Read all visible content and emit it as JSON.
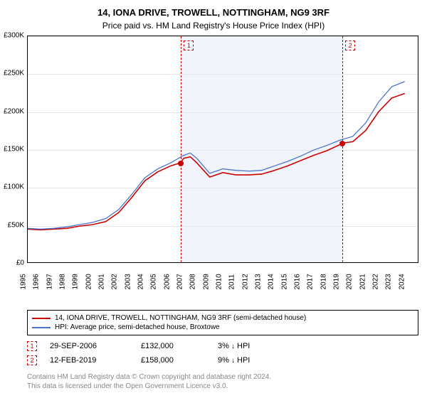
{
  "title": "14, IONA DRIVE, TROWELL, NOTTINGHAM, NG9 3RF",
  "subtitle": "Price paid vs. HM Land Registry's House Price Index (HPI)",
  "chart": {
    "type": "line",
    "ylim": [
      0,
      300000
    ],
    "ytick_step": 50000,
    "yticklabels": [
      "£0",
      "£50K",
      "£100K",
      "£150K",
      "£200K",
      "£250K",
      "£300K"
    ],
    "x_start": 1995,
    "x_end": 2025,
    "xticklabels": [
      "1995",
      "1996",
      "1997",
      "1998",
      "1999",
      "2000",
      "2001",
      "2002",
      "2003",
      "2004",
      "2005",
      "2006",
      "2007",
      "2008",
      "2009",
      "2010",
      "2011",
      "2012",
      "2013",
      "2014",
      "2015",
      "2016",
      "2017",
      "2018",
      "2019",
      "2020",
      "2021",
      "2022",
      "2023",
      "2024"
    ],
    "shaded_band": {
      "x_start": 2006.75,
      "x_end": 2019.12,
      "color": "#f2f4fb"
    },
    "series": [
      {
        "name": "property",
        "label": "14, IONA DRIVE, TROWELL, NOTTINGHAM, NG9 3RF (semi-detached house)",
        "color": "#cc0000",
        "width": 1.6,
        "data": [
          [
            1995,
            44000
          ],
          [
            1996,
            43000
          ],
          [
            1997,
            44000
          ],
          [
            1998,
            45000
          ],
          [
            1999,
            48000
          ],
          [
            2000,
            50000
          ],
          [
            2001,
            54000
          ],
          [
            2002,
            66000
          ],
          [
            2003,
            86000
          ],
          [
            2004,
            108000
          ],
          [
            2005,
            120000
          ],
          [
            2006,
            128000
          ],
          [
            2006.75,
            132000
          ],
          [
            2007,
            138000
          ],
          [
            2007.5,
            140000
          ],
          [
            2008,
            132000
          ],
          [
            2009,
            113000
          ],
          [
            2009.5,
            116000
          ],
          [
            2010,
            119000
          ],
          [
            2011,
            116000
          ],
          [
            2012,
            116000
          ],
          [
            2013,
            117000
          ],
          [
            2014,
            122000
          ],
          [
            2015,
            128000
          ],
          [
            2016,
            135000
          ],
          [
            2017,
            142000
          ],
          [
            2018,
            148000
          ],
          [
            2019,
            156000
          ],
          [
            2019.12,
            158000
          ],
          [
            2020,
            160000
          ],
          [
            2021,
            175000
          ],
          [
            2022,
            200000
          ],
          [
            2023,
            218000
          ],
          [
            2024,
            224000
          ]
        ]
      },
      {
        "name": "hpi",
        "label": "HPI: Average price, semi-detached house, Broxtowe",
        "color": "#4a74c9",
        "width": 1.3,
        "data": [
          [
            1995,
            45000
          ],
          [
            1996,
            44000
          ],
          [
            1997,
            45000
          ],
          [
            1998,
            47000
          ],
          [
            1999,
            50000
          ],
          [
            2000,
            53000
          ],
          [
            2001,
            58000
          ],
          [
            2002,
            70000
          ],
          [
            2003,
            90000
          ],
          [
            2004,
            112000
          ],
          [
            2005,
            124000
          ],
          [
            2006,
            132000
          ],
          [
            2007,
            142000
          ],
          [
            2007.5,
            145000
          ],
          [
            2008,
            138000
          ],
          [
            2009,
            118000
          ],
          [
            2009.5,
            121000
          ],
          [
            2010,
            124000
          ],
          [
            2011,
            122000
          ],
          [
            2012,
            121000
          ],
          [
            2013,
            122000
          ],
          [
            2014,
            128000
          ],
          [
            2015,
            134000
          ],
          [
            2016,
            141000
          ],
          [
            2017,
            149000
          ],
          [
            2018,
            155000
          ],
          [
            2019,
            162000
          ],
          [
            2020,
            167000
          ],
          [
            2021,
            185000
          ],
          [
            2022,
            213000
          ],
          [
            2023,
            233000
          ],
          [
            2024,
            240000
          ]
        ]
      }
    ],
    "markers": [
      {
        "n": "1",
        "x": 2006.75,
        "y": 132000,
        "color": "#cc0000"
      },
      {
        "n": "2",
        "x": 2019.12,
        "y": 158000,
        "color": "#cc0000"
      }
    ],
    "grid_color": "#e6e6e6",
    "background": "#ffffff"
  },
  "sales": [
    {
      "n": "1",
      "color": "#cc0000",
      "date": "29-SEP-2006",
      "price": "£132,000",
      "pct": "3%",
      "vs": "HPI"
    },
    {
      "n": "2",
      "color": "#cc0000",
      "date": "12-FEB-2019",
      "price": "£158,000",
      "pct": "9%",
      "vs": "HPI"
    }
  ],
  "footer": {
    "line1": "Contains HM Land Registry data © Crown copyright and database right 2024.",
    "line2": "This data is licensed under the Open Government Licence v3.0."
  },
  "arrow": "↓"
}
